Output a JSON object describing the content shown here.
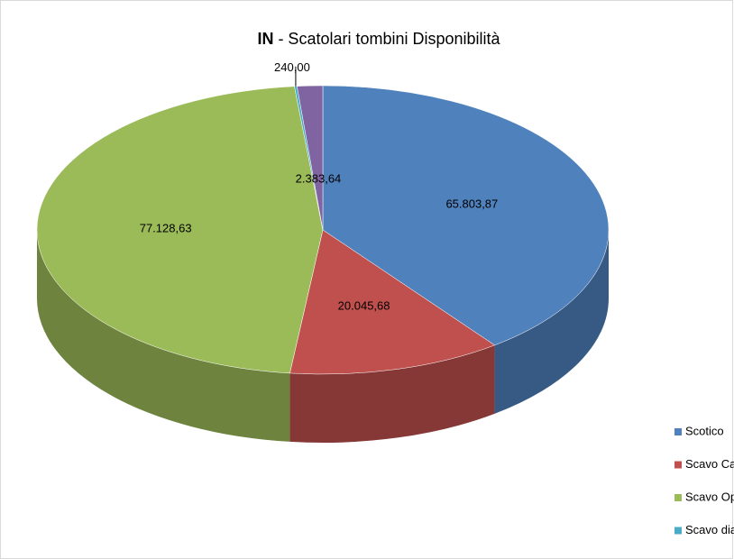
{
  "chart_data": {
    "type": "pie3d",
    "title_bold": "IN",
    "title": " - Scatolari tombini Disponibilità",
    "categories": [
      "Scotico",
      "Scavo Canali",
      "Scavo Opere",
      "Scavo diaframmi",
      null
    ],
    "values": [
      65803.87,
      20045.68,
      77128.63,
      240.0,
      2383.64
    ],
    "value_labels": [
      "65.803,87",
      "20.045,68",
      "77.128,63",
      "240,00",
      "2.383,64"
    ],
    "colors": [
      "#4f81bd",
      "#c0504d",
      "#9bbb59",
      "#4bacc6",
      "#8064a2"
    ],
    "legend": "right-bottom"
  }
}
